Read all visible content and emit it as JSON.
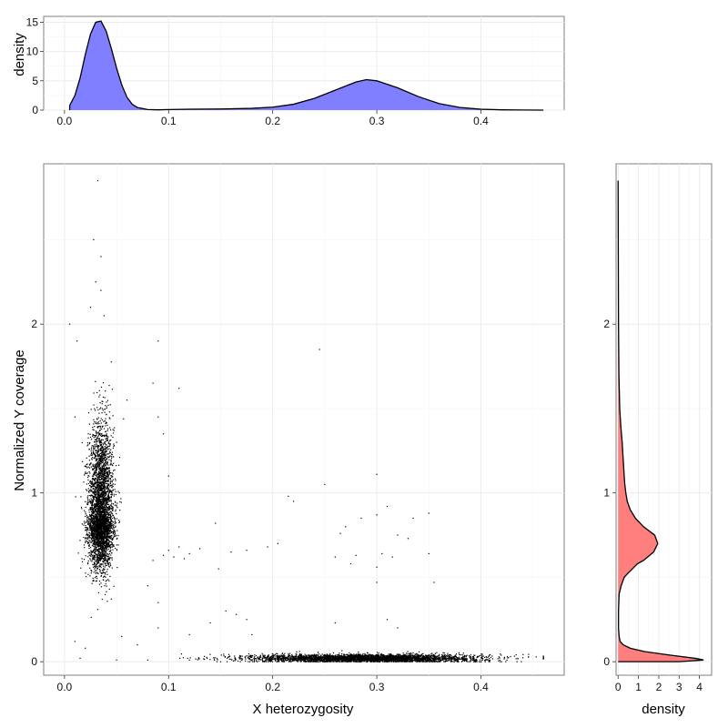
{
  "colors": {
    "top_density_fill": "#7f7fff",
    "right_density_fill": "#ff7f7f",
    "outline": "#000000",
    "points": "#000000"
  },
  "axes": {
    "top_ylabel": "density",
    "main_xlabel": "X heterozygosity",
    "main_ylabel": "Normalized Y coverage",
    "right_xlabel": "density"
  },
  "chart_data": [
    {
      "type": "area",
      "panel": "top",
      "xlabel": "",
      "ylabel": "density",
      "xlim": [
        -0.02,
        0.48
      ],
      "ylim": [
        0,
        16
      ],
      "x_ticks": [
        "0.0",
        "0.1",
        "0.2",
        "0.3",
        "0.4"
      ],
      "y_ticks": [
        "0",
        "5",
        "10",
        "15"
      ],
      "grid": true,
      "x": [
        0.005,
        0.01,
        0.015,
        0.02,
        0.025,
        0.03,
        0.035,
        0.04,
        0.045,
        0.05,
        0.055,
        0.06,
        0.065,
        0.07,
        0.08,
        0.09,
        0.1,
        0.12,
        0.15,
        0.18,
        0.2,
        0.22,
        0.24,
        0.26,
        0.28,
        0.29,
        0.3,
        0.32,
        0.34,
        0.36,
        0.38,
        0.4,
        0.42,
        0.44,
        0.46
      ],
      "y": [
        0.8,
        2.5,
        5.5,
        9.5,
        13.0,
        15.0,
        15.2,
        13.5,
        10.5,
        7.2,
        4.3,
        2.2,
        1.0,
        0.45,
        0.1,
        0.05,
        0.1,
        0.15,
        0.2,
        0.3,
        0.5,
        1.0,
        2.0,
        3.4,
        4.8,
        5.2,
        5.0,
        3.8,
        2.3,
        1.1,
        0.45,
        0.15,
        0.05,
        0.02,
        0.0
      ]
    },
    {
      "type": "scatter",
      "panel": "main",
      "xlabel": "X heterozygosity",
      "ylabel": "Normalized Y coverage",
      "xlim": [
        -0.02,
        0.48
      ],
      "ylim": [
        -0.08,
        2.95
      ],
      "x_ticks": [
        "0.0",
        "0.1",
        "0.2",
        "0.3",
        "0.4"
      ],
      "y_ticks": [
        "0",
        "1",
        "2"
      ],
      "grid": true,
      "clusters": [
        {
          "name": "",
          "n": 4000,
          "x_mean": 0.035,
          "x_sd": 0.006,
          "y_mean": 0.85,
          "y_sd": 0.2
        },
        {
          "name": "",
          "n": 3500,
          "x_mean": 0.29,
          "x_sd": 0.055,
          "y_mean": 0.02,
          "y_sd": 0.012
        }
      ],
      "outliers": [
        [
          0.032,
          2.85
        ],
        [
          0.028,
          2.5
        ],
        [
          0.035,
          2.4
        ],
        [
          0.03,
          2.25
        ],
        [
          0.035,
          2.2
        ],
        [
          0.025,
          2.1
        ],
        [
          0.038,
          2.05
        ],
        [
          0.005,
          2.0
        ],
        [
          0.012,
          1.9
        ],
        [
          0.09,
          1.9
        ],
        [
          0.085,
          1.65
        ],
        [
          0.11,
          1.62
        ],
        [
          0.245,
          1.85
        ],
        [
          0.06,
          1.55
        ],
        [
          0.09,
          1.45
        ],
        [
          0.01,
          1.45
        ],
        [
          0.05,
          1.3
        ],
        [
          0.095,
          1.35
        ],
        [
          0.1,
          1.1
        ],
        [
          0.3,
          1.11
        ],
        [
          0.25,
          1.05
        ],
        [
          0.215,
          0.98
        ],
        [
          0.22,
          0.95
        ],
        [
          0.31,
          0.92
        ],
        [
          0.3,
          0.87
        ],
        [
          0.285,
          0.85
        ],
        [
          0.335,
          0.85
        ],
        [
          0.35,
          0.88
        ],
        [
          0.145,
          0.82
        ],
        [
          0.27,
          0.8
        ],
        [
          0.265,
          0.76
        ],
        [
          0.32,
          0.75
        ],
        [
          0.33,
          0.73
        ],
        [
          0.205,
          0.7
        ],
        [
          0.195,
          0.68
        ],
        [
          0.175,
          0.66
        ],
        [
          0.16,
          0.65
        ],
        [
          0.26,
          0.62
        ],
        [
          0.28,
          0.63
        ],
        [
          0.305,
          0.64
        ],
        [
          0.315,
          0.62
        ],
        [
          0.35,
          0.64
        ],
        [
          0.085,
          0.6
        ],
        [
          0.095,
          0.63
        ],
        [
          0.1,
          0.66
        ],
        [
          0.105,
          0.62
        ],
        [
          0.11,
          0.68
        ],
        [
          0.115,
          0.61
        ],
        [
          0.12,
          0.64
        ],
        [
          0.13,
          0.67
        ],
        [
          0.275,
          0.58
        ],
        [
          0.3,
          0.56
        ],
        [
          0.148,
          0.55
        ],
        [
          0.3,
          0.47
        ],
        [
          0.355,
          0.47
        ],
        [
          0.08,
          0.45
        ],
        [
          0.09,
          0.35
        ],
        [
          0.155,
          0.3
        ],
        [
          0.165,
          0.28
        ],
        [
          0.175,
          0.25
        ],
        [
          0.26,
          0.23
        ],
        [
          0.31,
          0.25
        ],
        [
          0.32,
          0.2
        ],
        [
          0.09,
          0.2
        ],
        [
          0.12,
          0.16
        ],
        [
          0.14,
          0.23
        ],
        [
          0.18,
          0.16
        ],
        [
          0.01,
          0.12
        ],
        [
          0.02,
          0.08
        ],
        [
          0.055,
          0.15
        ],
        [
          0.07,
          0.1
        ],
        [
          0.015,
          0.02
        ],
        [
          0.05,
          0.01
        ],
        [
          0.08,
          0.01
        ],
        [
          0.12,
          0.01
        ],
        [
          0.15,
          0.0
        ],
        [
          0.17,
          0.01
        ]
      ]
    },
    {
      "type": "area",
      "panel": "right",
      "orientation": "horizontal",
      "xlabel": "density",
      "ylabel": "",
      "xlim": [
        -0.1,
        4.6
      ],
      "ylim": [
        -0.08,
        2.95
      ],
      "x_ticks": [
        "0",
        "1",
        "2",
        "3",
        "4"
      ],
      "y_ticks": [
        "0",
        "1",
        "2"
      ],
      "grid": true,
      "y": [
        0.0,
        0.01,
        0.02,
        0.04,
        0.06,
        0.08,
        0.1,
        0.12,
        0.15,
        0.2,
        0.3,
        0.4,
        0.45,
        0.5,
        0.52,
        0.55,
        0.58,
        0.6,
        0.65,
        0.7,
        0.75,
        0.8,
        0.85,
        0.9,
        0.95,
        1.0,
        1.05,
        1.1,
        1.2,
        1.3,
        1.4,
        1.5,
        1.7,
        2.0,
        2.4,
        2.85
      ],
      "density": [
        3.0,
        4.2,
        3.8,
        2.5,
        1.3,
        0.6,
        0.25,
        0.1,
        0.05,
        0.02,
        0.02,
        0.05,
        0.15,
        0.3,
        0.45,
        0.7,
        0.95,
        1.25,
        1.75,
        1.95,
        1.8,
        1.25,
        0.85,
        0.6,
        0.45,
        0.38,
        0.33,
        0.3,
        0.25,
        0.2,
        0.13,
        0.08,
        0.04,
        0.02,
        0.01,
        0.0
      ]
    }
  ]
}
